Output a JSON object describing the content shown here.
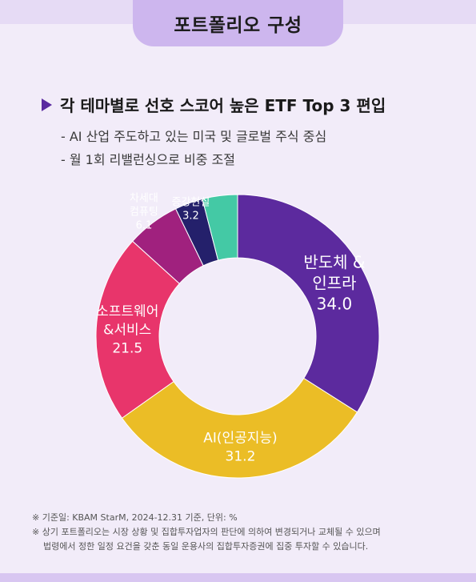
{
  "header": {
    "title": "포트폴리오 구성"
  },
  "heading": "각 테마별로 선호 스코어 높은 ETF Top 3 편입",
  "bullets": [
    "- AI 산업 주도하고 있는 미국 및 글로벌 주식 중심",
    "- 월 1회 리밸런싱으로 비중 조절"
  ],
  "icons": {
    "heading_marker": "triangle-right-icon"
  },
  "chart_data": {
    "type": "pie",
    "donut": true,
    "unit": "%",
    "start": "12 o'clock, clockwise",
    "slices": [
      {
        "label_lines": [
          "반도체 &",
          "인프라"
        ],
        "value": 34.0,
        "display": "34.0",
        "color": "#5c2a9e"
      },
      {
        "label_lines": [
          "AI(인공지능)"
        ],
        "value": 31.2,
        "display": "31.2",
        "color": "#ebbd26"
      },
      {
        "label_lines": [
          "소프트웨어",
          "&서비스"
        ],
        "value": 21.5,
        "display": "21.5",
        "color": "#e8356b"
      },
      {
        "label_lines": [
          "차세대",
          "컴퓨팅"
        ],
        "value": 6.1,
        "display": "6.1",
        "color": "#a0217e"
      },
      {
        "label_lines": [
          "증강현실"
        ],
        "value": 3.2,
        "display": "3.2",
        "color": "#24206b"
      },
      {
        "label_lines": [],
        "value": 4.0,
        "display": "",
        "color": "#44c9a5"
      }
    ]
  },
  "notes": [
    "※ 기준일: KBAM StarM, 2024-12.31 기준, 단위: %",
    "※ 상기 포트폴리오는 시장 상황 및 집합투자업자의 판단에 의하여 변경되거나 교체될 수 있으며",
    "법령에서 정한 일정 요건을 갖춘 동일 운용사의 집합투자증권에 집중 투자할 수 있습니다."
  ]
}
